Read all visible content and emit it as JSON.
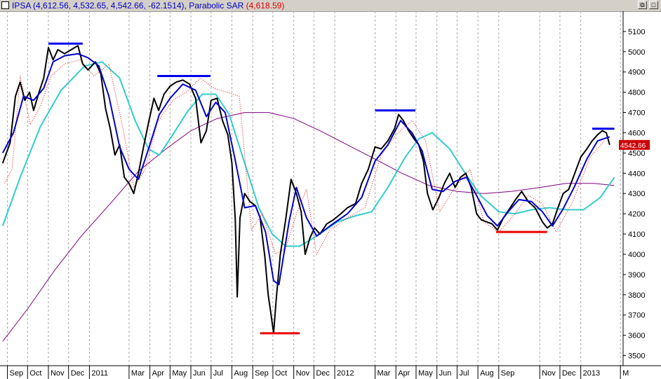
{
  "window": {
    "restore_icon": "restore-icon",
    "maximize_icon": "maximize-icon",
    "restore_glyph": "⧉",
    "maximize_glyph": "□"
  },
  "legend": {
    "symbol": "IPSA",
    "ohlc": "(4,612.56, 4,532.65, 4,542.66, -62.1514)",
    "indicator": "Parabolic SAR",
    "indicator_value": "(4,618.59)"
  },
  "colors": {
    "price": "#000000",
    "short_ma": "#0000cc",
    "mid_ma": "#33cccc",
    "long_ma": "#800080",
    "sar": "#ff0000",
    "resistance": "#0000ee",
    "support": "#ee0000",
    "grid": "#a8a8a8",
    "last_price_bg": "#cc0000"
  },
  "chart_data": {
    "type": "line",
    "y_range": [
      3450,
      5200
    ],
    "y_ticks": [
      3500,
      3600,
      3700,
      3800,
      3900,
      4000,
      4100,
      4200,
      4300,
      4400,
      4500,
      4600,
      4700,
      4800,
      4900,
      5000,
      5100
    ],
    "last_price_label": "4542.66",
    "x_axis_labels": [
      "Sep",
      "Oct",
      "Nov",
      "Dec",
      "2011",
      "Mar",
      "Apr",
      "May",
      "Jun",
      "Jul",
      "Aug",
      "Sep",
      "Oct",
      "Nov",
      "Dec",
      "2012",
      "Mar",
      "Apr",
      "May",
      "Jun",
      "Jul",
      "Aug",
      "Sep",
      "Nov",
      "Dec",
      "2013",
      "M"
    ],
    "x_axis_dates": [
      "2010-09",
      "2010-10",
      "2010-11",
      "2010-12",
      "2011-01",
      "2011-03",
      "2011-04",
      "2011-05",
      "2011-06",
      "2011-07",
      "2011-08",
      "2011-09",
      "2011-10",
      "2011-11",
      "2011-12",
      "2012-01",
      "2012-03",
      "2012-04",
      "2012-05",
      "2012-06",
      "2012-07",
      "2012-08",
      "2012-09",
      "2012-11",
      "2012-12",
      "2013-01",
      "2013-03"
    ],
    "price": [
      [
        "2010-08-25",
        4450
      ],
      [
        "2010-09-05",
        4550
      ],
      [
        "2010-09-13",
        4780
      ],
      [
        "2010-09-20",
        4850
      ],
      [
        "2010-09-27",
        4760
      ],
      [
        "2010-10-04",
        4800
      ],
      [
        "2010-10-10",
        4710
      ],
      [
        "2010-10-18",
        4800
      ],
      [
        "2010-10-25",
        4870
      ],
      [
        "2010-11-01",
        5020
      ],
      [
        "2010-11-08",
        4960
      ],
      [
        "2010-11-15",
        5010
      ],
      [
        "2010-11-25",
        4990
      ],
      [
        "2010-12-05",
        5010
      ],
      [
        "2010-12-15",
        5030
      ],
      [
        "2010-12-22",
        4940
      ],
      [
        "2010-12-30",
        4910
      ],
      [
        "2011-01-10",
        4950
      ],
      [
        "2011-01-18",
        4890
      ],
      [
        "2011-01-25",
        4720
      ],
      [
        "2011-02-01",
        4620
      ],
      [
        "2011-02-08",
        4490
      ],
      [
        "2011-02-15",
        4540
      ],
      [
        "2011-02-22",
        4380
      ],
      [
        "2011-03-01",
        4350
      ],
      [
        "2011-03-08",
        4300
      ],
      [
        "2011-03-15",
        4400
      ],
      [
        "2011-03-22",
        4520
      ],
      [
        "2011-03-30",
        4650
      ],
      [
        "2011-04-07",
        4770
      ],
      [
        "2011-04-14",
        4710
      ],
      [
        "2011-04-22",
        4790
      ],
      [
        "2011-05-01",
        4830
      ],
      [
        "2011-05-10",
        4850
      ],
      [
        "2011-05-20",
        4860
      ],
      [
        "2011-05-30",
        4840
      ],
      [
        "2011-06-08",
        4770
      ],
      [
        "2011-06-16",
        4550
      ],
      [
        "2011-06-24",
        4610
      ],
      [
        "2011-07-01",
        4760
      ],
      [
        "2011-07-10",
        4770
      ],
      [
        "2011-07-18",
        4660
      ],
      [
        "2011-07-26",
        4590
      ],
      [
        "2011-08-01",
        4450
      ],
      [
        "2011-08-06",
        4170
      ],
      [
        "2011-08-09",
        3790
      ],
      [
        "2011-08-13",
        4180
      ],
      [
        "2011-08-20",
        4300
      ],
      [
        "2011-08-28",
        4260
      ],
      [
        "2011-09-05",
        4240
      ],
      [
        "2011-09-12",
        4180
      ],
      [
        "2011-09-19",
        3990
      ],
      [
        "2011-09-24",
        3800
      ],
      [
        "2011-09-28",
        3710
      ],
      [
        "2011-10-02",
        3610
      ],
      [
        "2011-10-06",
        3780
      ],
      [
        "2011-10-12",
        4000
      ],
      [
        "2011-10-20",
        4170
      ],
      [
        "2011-10-28",
        4370
      ],
      [
        "2011-11-05",
        4300
      ],
      [
        "2011-11-12",
        4210
      ],
      [
        "2011-11-18",
        4000
      ],
      [
        "2011-11-25",
        4080
      ],
      [
        "2011-12-02",
        4130
      ],
      [
        "2011-12-10",
        4100
      ],
      [
        "2011-12-20",
        4150
      ],
      [
        "2011-12-30",
        4170
      ],
      [
        "2012-01-10",
        4200
      ],
      [
        "2012-01-20",
        4230
      ],
      [
        "2012-02-01",
        4250
      ],
      [
        "2012-02-10",
        4350
      ],
      [
        "2012-02-20",
        4420
      ],
      [
        "2012-03-01",
        4530
      ],
      [
        "2012-03-10",
        4520
      ],
      [
        "2012-03-20",
        4560
      ],
      [
        "2012-03-30",
        4620
      ],
      [
        "2012-04-05",
        4690
      ],
      [
        "2012-04-12",
        4660
      ],
      [
        "2012-04-20",
        4610
      ],
      [
        "2012-04-28",
        4570
      ],
      [
        "2012-05-05",
        4540
      ],
      [
        "2012-05-12",
        4460
      ],
      [
        "2012-05-18",
        4300
      ],
      [
        "2012-05-26",
        4220
      ],
      [
        "2012-06-04",
        4280
      ],
      [
        "2012-06-12",
        4350
      ],
      [
        "2012-06-20",
        4400
      ],
      [
        "2012-06-28",
        4330
      ],
      [
        "2012-07-06",
        4380
      ],
      [
        "2012-07-14",
        4400
      ],
      [
        "2012-07-22",
        4330
      ],
      [
        "2012-07-30",
        4200
      ],
      [
        "2012-08-06",
        4170
      ],
      [
        "2012-08-14",
        4160
      ],
      [
        "2012-08-22",
        4150
      ],
      [
        "2012-08-30",
        4120
      ],
      [
        "2012-09-08",
        4180
      ],
      [
        "2012-09-18",
        4230
      ],
      [
        "2012-09-26",
        4270
      ],
      [
        "2012-10-05",
        4310
      ],
      [
        "2012-10-15",
        4260
      ],
      [
        "2012-10-25",
        4230
      ],
      [
        "2012-11-05",
        4160
      ],
      [
        "2012-11-12",
        4130
      ],
      [
        "2012-11-20",
        4150
      ],
      [
        "2012-11-28",
        4230
      ],
      [
        "2012-12-06",
        4300
      ],
      [
        "2012-12-14",
        4320
      ],
      [
        "2012-12-22",
        4390
      ],
      [
        "2013-01-01",
        4480
      ],
      [
        "2013-01-10",
        4520
      ],
      [
        "2013-01-18",
        4560
      ],
      [
        "2013-01-26",
        4590
      ],
      [
        "2013-02-02",
        4610
      ],
      [
        "2013-02-08",
        4600
      ],
      [
        "2013-02-13",
        4540
      ]
    ],
    "short_ma": [
      [
        "2010-08-25",
        4500
      ],
      [
        "2010-09-10",
        4600
      ],
      [
        "2010-09-25",
        4780
      ],
      [
        "2010-10-10",
        4760
      ],
      [
        "2010-10-25",
        4820
      ],
      [
        "2010-11-08",
        4950
      ],
      [
        "2010-11-25",
        4980
      ],
      [
        "2010-12-15",
        4990
      ],
      [
        "2010-12-30",
        4970
      ],
      [
        "2011-01-15",
        4930
      ],
      [
        "2011-01-30",
        4780
      ],
      [
        "2011-02-15",
        4530
      ],
      [
        "2011-03-01",
        4420
      ],
      [
        "2011-03-15",
        4370
      ],
      [
        "2011-03-30",
        4520
      ],
      [
        "2011-04-15",
        4690
      ],
      [
        "2011-05-01",
        4770
      ],
      [
        "2011-05-20",
        4840
      ],
      [
        "2011-06-08",
        4810
      ],
      [
        "2011-06-24",
        4680
      ],
      [
        "2011-07-08",
        4750
      ],
      [
        "2011-07-22",
        4700
      ],
      [
        "2011-08-05",
        4480
      ],
      [
        "2011-08-20",
        4230
      ],
      [
        "2011-09-05",
        4240
      ],
      [
        "2011-09-20",
        4110
      ],
      [
        "2011-10-02",
        3870
      ],
      [
        "2011-10-10",
        3850
      ],
      [
        "2011-10-25",
        4160
      ],
      [
        "2011-11-05",
        4330
      ],
      [
        "2011-11-20",
        4180
      ],
      [
        "2011-12-05",
        4090
      ],
      [
        "2011-12-25",
        4140
      ],
      [
        "2012-01-20",
        4200
      ],
      [
        "2012-02-10",
        4280
      ],
      [
        "2012-03-01",
        4460
      ],
      [
        "2012-03-20",
        4540
      ],
      [
        "2012-04-08",
        4660
      ],
      [
        "2012-04-25",
        4600
      ],
      [
        "2012-05-10",
        4510
      ],
      [
        "2012-05-25",
        4320
      ],
      [
        "2012-06-10",
        4310
      ],
      [
        "2012-06-28",
        4360
      ],
      [
        "2012-07-15",
        4380
      ],
      [
        "2012-07-30",
        4290
      ],
      [
        "2012-08-15",
        4190
      ],
      [
        "2012-08-30",
        4140
      ],
      [
        "2012-09-15",
        4210
      ],
      [
        "2012-10-01",
        4270
      ],
      [
        "2012-10-20",
        4260
      ],
      [
        "2012-11-05",
        4210
      ],
      [
        "2012-11-20",
        4140
      ],
      [
        "2012-12-05",
        4220
      ],
      [
        "2012-12-22",
        4330
      ],
      [
        "2013-01-10",
        4470
      ],
      [
        "2013-01-26",
        4560
      ],
      [
        "2013-02-13",
        4580
      ]
    ],
    "mid_ma": [
      [
        "2010-08-25",
        4140
      ],
      [
        "2010-09-20",
        4380
      ],
      [
        "2010-10-20",
        4630
      ],
      [
        "2010-11-20",
        4810
      ],
      [
        "2010-12-25",
        4930
      ],
      [
        "2011-01-20",
        4950
      ],
      [
        "2011-02-15",
        4870
      ],
      [
        "2011-03-10",
        4660
      ],
      [
        "2011-03-30",
        4520
      ],
      [
        "2011-04-15",
        4490
      ],
      [
        "2011-05-05",
        4590
      ],
      [
        "2011-05-28",
        4710
      ],
      [
        "2011-06-18",
        4790
      ],
      [
        "2011-07-08",
        4790
      ],
      [
        "2011-07-28",
        4690
      ],
      [
        "2011-08-20",
        4450
      ],
      [
        "2011-09-10",
        4230
      ],
      [
        "2011-09-30",
        4100
      ],
      [
        "2011-10-20",
        4040
      ],
      [
        "2011-11-10",
        4040
      ],
      [
        "2011-12-05",
        4090
      ],
      [
        "2012-01-05",
        4160
      ],
      [
        "2012-02-01",
        4190
      ],
      [
        "2012-02-25",
        4210
      ],
      [
        "2012-03-20",
        4330
      ],
      [
        "2012-04-15",
        4480
      ],
      [
        "2012-05-05",
        4570
      ],
      [
        "2012-05-25",
        4600
      ],
      [
        "2012-06-20",
        4520
      ],
      [
        "2012-07-15",
        4390
      ],
      [
        "2012-08-05",
        4290
      ],
      [
        "2012-09-01",
        4210
      ],
      [
        "2012-09-25",
        4200
      ],
      [
        "2012-10-20",
        4220
      ],
      [
        "2012-11-15",
        4230
      ],
      [
        "2012-12-10",
        4220
      ],
      [
        "2013-01-05",
        4220
      ],
      [
        "2013-01-30",
        4280
      ],
      [
        "2013-02-20",
        4380
      ]
    ],
    "long_ma": [
      [
        "2010-08-25",
        3570
      ],
      [
        "2010-10-01",
        3730
      ],
      [
        "2010-11-10",
        3920
      ],
      [
        "2010-12-20",
        4090
      ],
      [
        "2011-02-01",
        4250
      ],
      [
        "2011-03-15",
        4410
      ],
      [
        "2011-04-25",
        4520
      ],
      [
        "2011-06-01",
        4610
      ],
      [
        "2011-07-10",
        4670
      ],
      [
        "2011-08-20",
        4700
      ],
      [
        "2011-09-25",
        4700
      ],
      [
        "2011-11-01",
        4670
      ],
      [
        "2011-12-10",
        4610
      ],
      [
        "2012-01-20",
        4540
      ],
      [
        "2012-03-01",
        4470
      ],
      [
        "2012-04-10",
        4400
      ],
      [
        "2012-05-20",
        4340
      ],
      [
        "2012-07-01",
        4310
      ],
      [
        "2012-08-10",
        4300
      ],
      [
        "2012-09-20",
        4310
      ],
      [
        "2012-11-01",
        4330
      ],
      [
        "2012-12-10",
        4350
      ],
      [
        "2013-01-20",
        4350
      ],
      [
        "2013-02-20",
        4340
      ]
    ],
    "sar": [
      [
        "2010-08-28",
        4350
      ],
      [
        "2010-09-08",
        4420
      ],
      [
        "2010-09-20",
        4880
      ],
      [
        "2010-10-05",
        4640
      ],
      [
        "2010-10-20",
        4730
      ],
      [
        "2010-11-05",
        4880
      ],
      [
        "2010-11-25",
        4940
      ],
      [
        "2010-12-18",
        4960
      ],
      [
        "2011-01-08",
        4880
      ],
      [
        "2011-01-30",
        4940
      ],
      [
        "2011-02-20",
        4620
      ],
      [
        "2011-03-08",
        4330
      ],
      [
        "2011-03-25",
        4420
      ],
      [
        "2011-04-12",
        4650
      ],
      [
        "2011-05-05",
        4760
      ],
      [
        "2011-05-25",
        4800
      ],
      [
        "2011-06-15",
        4870
      ],
      [
        "2011-07-05",
        4820
      ],
      [
        "2011-07-25",
        4800
      ],
      [
        "2011-08-12",
        4780
      ],
      [
        "2011-08-30",
        4120
      ],
      [
        "2011-09-15",
        4200
      ],
      [
        "2011-10-05",
        4000
      ],
      [
        "2011-10-20",
        4030
      ],
      [
        "2011-11-05",
        4200
      ],
      [
        "2011-11-20",
        4320
      ],
      [
        "2011-12-05",
        4000
      ],
      [
        "2011-12-25",
        4120
      ],
      [
        "2012-01-20",
        4180
      ],
      [
        "2012-02-15",
        4230
      ],
      [
        "2012-03-10",
        4490
      ],
      [
        "2012-04-01",
        4590
      ],
      [
        "2012-04-25",
        4660
      ],
      [
        "2012-05-15",
        4560
      ],
      [
        "2012-06-05",
        4210
      ],
      [
        "2012-06-28",
        4330
      ],
      [
        "2012-07-20",
        4420
      ],
      [
        "2012-08-10",
        4160
      ],
      [
        "2012-09-01",
        4110
      ],
      [
        "2012-09-25",
        4200
      ],
      [
        "2012-10-15",
        4290
      ],
      [
        "2012-11-05",
        4250
      ],
      [
        "2012-11-25",
        4110
      ],
      [
        "2012-12-20",
        4260
      ],
      [
        "2013-01-15",
        4480
      ],
      [
        "2013-02-05",
        4560
      ]
    ],
    "resistance_lines": [
      {
        "from": "2010-11-01",
        "to": "2010-12-22",
        "value": 5040
      },
      {
        "from": "2011-04-12",
        "to": "2011-06-30",
        "value": 4880
      },
      {
        "from": "2012-03-01",
        "to": "2012-04-30",
        "value": 4710
      },
      {
        "from": "2013-01-18",
        "to": "2013-02-20",
        "value": 4620
      }
    ],
    "support_lines": [
      {
        "from": "2011-09-12",
        "to": "2011-11-10",
        "value": 3610
      },
      {
        "from": "2012-08-28",
        "to": "2012-11-12",
        "value": 4110
      }
    ]
  }
}
